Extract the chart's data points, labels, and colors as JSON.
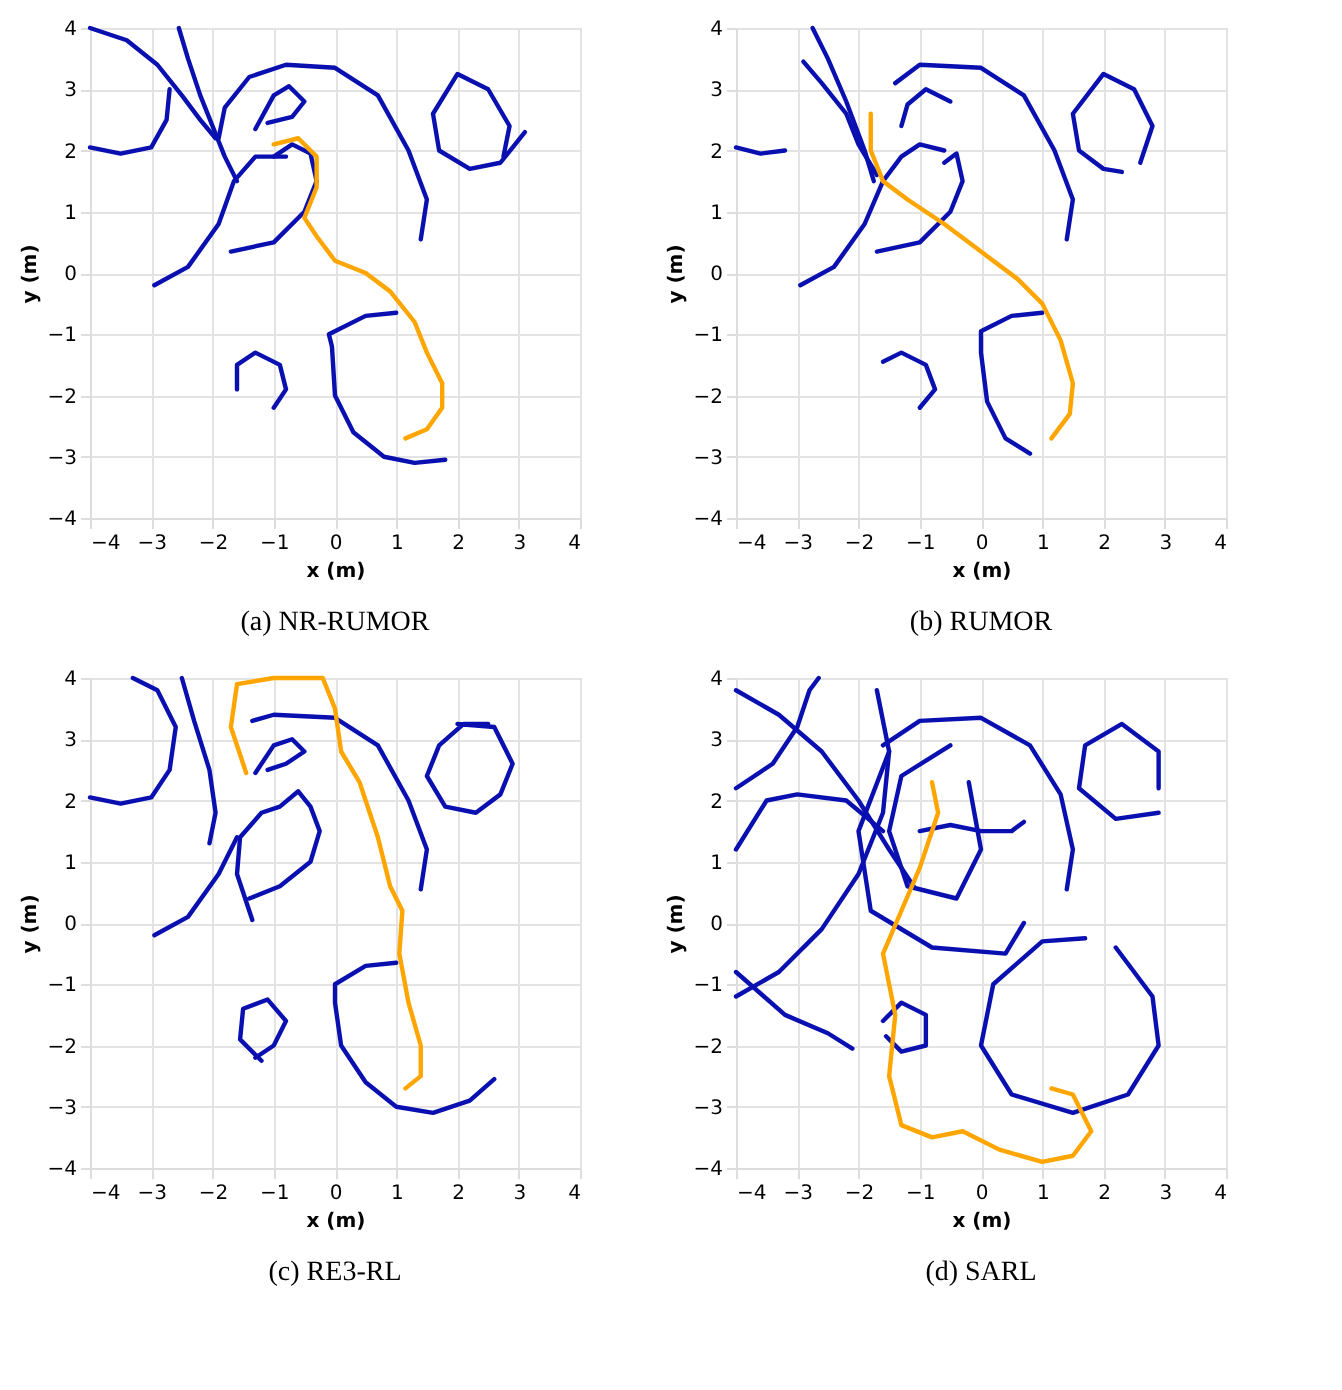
{
  "chart_data": [
    {
      "type": "line",
      "title": "(a) NR-RUMOR",
      "xlabel": "x (m)",
      "ylabel": "y (m)",
      "xlim": [
        -4,
        4
      ],
      "ylim": [
        -4,
        4
      ],
      "xticks": [
        -4,
        -3,
        -2,
        -1,
        0,
        1,
        2,
        3,
        4
      ],
      "yticks": [
        -4,
        -3,
        -2,
        -1,
        0,
        1,
        2,
        3,
        4
      ],
      "grid": true,
      "series": [
        {
          "color": "#0a10b0",
          "x": [
            -4,
            -3.5,
            -3,
            -2.75,
            -2.7
          ],
          "values": [
            2.05,
            1.95,
            2.05,
            2.5,
            3.0
          ]
        },
        {
          "color": "#0a10b0",
          "x": [
            -4,
            -3.4,
            -2.9,
            -2.5,
            -2.2,
            -1.95
          ],
          "values": [
            4,
            3.8,
            3.4,
            2.9,
            2.5,
            2.2
          ]
        },
        {
          "color": "#0a10b0",
          "x": [
            -2.55,
            -2.4,
            -2.2,
            -2.0,
            -1.8,
            -1.6
          ],
          "values": [
            4,
            3.5,
            2.9,
            2.4,
            1.9,
            1.5
          ]
        },
        {
          "color": "#0a10b0",
          "x": [
            -2.95,
            -2.4,
            -1.9,
            -1.65,
            -1.3,
            -0.8
          ],
          "values": [
            -0.2,
            0.1,
            0.8,
            1.5,
            1.9,
            1.9
          ]
        },
        {
          "color": "#0a10b0",
          "x": [
            -1.9,
            -1.8,
            -1.4,
            -0.8,
            0,
            0.7,
            1.2,
            1.5,
            1.4
          ],
          "values": [
            2.2,
            2.7,
            3.2,
            3.4,
            3.35,
            2.9,
            2.0,
            1.2,
            0.55
          ]
        },
        {
          "color": "#0a10b0",
          "x": [
            -1.3,
            -1.0,
            -0.75,
            -0.5,
            -0.7,
            -1.1
          ],
          "values": [
            2.35,
            2.9,
            3.05,
            2.8,
            2.55,
            2.45
          ]
        },
        {
          "color": "#0a10b0",
          "x": [
            -1.7,
            -1.0,
            -0.5,
            -0.3,
            -0.4,
            -0.7,
            -1.0
          ],
          "values": [
            0.35,
            0.5,
            1.0,
            1.5,
            1.95,
            2.1,
            1.9
          ]
        },
        {
          "color": "#0a10b0",
          "x": [
            3.1,
            2.7,
            2.2,
            1.7,
            1.6,
            2.0,
            2.5,
            2.85,
            2.75
          ],
          "values": [
            2.3,
            1.8,
            1.7,
            2.0,
            2.6,
            3.25,
            3.0,
            2.4,
            1.9
          ]
        },
        {
          "color": "#0a10b0",
          "x": [
            -1.6,
            -1.6,
            -1.3,
            -0.9,
            -0.8,
            -1.0
          ],
          "values": [
            -1.9,
            -1.5,
            -1.3,
            -1.5,
            -1.9,
            -2.2
          ]
        },
        {
          "color": "#0a10b0",
          "x": [
            1.0,
            0.5,
            -0.1,
            -0.05,
            0,
            0.3,
            0.8,
            1.3,
            1.8
          ],
          "values": [
            -0.65,
            -0.7,
            -1.0,
            -1.2,
            -2.0,
            -2.6,
            -3.0,
            -3.1,
            -3.05
          ]
        },
        {
          "color": "#ffa500",
          "x": [
            -1.0,
            -0.6,
            -0.3,
            -0.3,
            -0.5,
            -0.3,
            0,
            0.5,
            0.9,
            1.3,
            1.5,
            1.75,
            1.75,
            1.5,
            1.15
          ],
          "values": [
            2.1,
            2.2,
            1.9,
            1.4,
            0.9,
            0.6,
            0.2,
            0,
            -0.3,
            -0.8,
            -1.3,
            -1.8,
            -2.2,
            -2.55,
            -2.7
          ]
        }
      ]
    },
    {
      "type": "line",
      "title": "(b) RUMOR",
      "xlabel": "x (m)",
      "ylabel": "y (m)",
      "xlim": [
        -4,
        4
      ],
      "ylim": [
        -4,
        4
      ],
      "xticks": [
        -4,
        -3,
        -2,
        -1,
        0,
        1,
        2,
        3,
        4
      ],
      "yticks": [
        -4,
        -3,
        -2,
        -1,
        0,
        1,
        2,
        3,
        4
      ],
      "grid": true,
      "series": [
        {
          "color": "#0a10b0",
          "x": [
            -4,
            -3.6,
            -3.2
          ],
          "values": [
            2.05,
            1.95,
            2.0
          ]
        },
        {
          "color": "#0a10b0",
          "x": [
            -2.9,
            -2.6,
            -2.2,
            -2.0,
            -1.7
          ],
          "values": [
            3.45,
            3.1,
            2.6,
            2.1,
            1.6
          ]
        },
        {
          "color": "#0a10b0",
          "x": [
            -2.75,
            -2.5,
            -2.2,
            -1.9,
            -1.75
          ],
          "values": [
            4,
            3.5,
            2.8,
            2.0,
            1.5
          ]
        },
        {
          "color": "#0a10b0",
          "x": [
            -2.95,
            -2.4,
            -1.9,
            -1.6,
            -1.3,
            -1.0,
            -0.6
          ],
          "values": [
            -0.2,
            0.1,
            0.8,
            1.5,
            1.9,
            2.1,
            2.0
          ]
        },
        {
          "color": "#0a10b0",
          "x": [
            -1.4,
            -1.0,
            0,
            0.7,
            1.2,
            1.5,
            1.4
          ],
          "values": [
            3.1,
            3.4,
            3.35,
            2.9,
            2.0,
            1.2,
            0.55
          ]
        },
        {
          "color": "#0a10b0",
          "x": [
            -1.3,
            -1.2,
            -0.9,
            -0.5
          ],
          "values": [
            2.4,
            2.75,
            3.0,
            2.8
          ]
        },
        {
          "color": "#0a10b0",
          "x": [
            -1.7,
            -1.0,
            -0.5,
            -0.3,
            -0.4,
            -0.6
          ],
          "values": [
            0.35,
            0.5,
            1.0,
            1.5,
            1.95,
            1.8
          ]
        },
        {
          "color": "#0a10b0",
          "x": [
            2.3,
            2.0,
            1.6,
            1.5,
            2.0,
            2.5,
            2.8,
            2.6
          ],
          "values": [
            1.65,
            1.7,
            2.0,
            2.6,
            3.25,
            3.0,
            2.4,
            1.8
          ]
        },
        {
          "color": "#0a10b0",
          "x": [
            -1.6,
            -1.3,
            -0.9,
            -0.75,
            -1.0
          ],
          "values": [
            -1.45,
            -1.3,
            -1.5,
            -1.9,
            -2.2
          ]
        },
        {
          "color": "#0a10b0",
          "x": [
            1.0,
            0.5,
            0,
            0,
            0.1,
            0.4,
            0.8
          ],
          "values": [
            -0.65,
            -0.7,
            -0.95,
            -1.3,
            -2.1,
            -2.7,
            -2.95
          ]
        },
        {
          "color": "#ffa500",
          "x": [
            -1.8,
            -1.8,
            -1.6,
            -1.2,
            -0.6,
            0,
            0.6,
            1.0,
            1.3,
            1.5,
            1.45,
            1.15
          ],
          "values": [
            2.6,
            2.0,
            1.5,
            1.2,
            0.8,
            0.35,
            -0.1,
            -0.5,
            -1.1,
            -1.8,
            -2.3,
            -2.7
          ]
        }
      ]
    },
    {
      "type": "line",
      "title": "(c) RE3-RL",
      "xlabel": "x (m)",
      "ylabel": "y (m)",
      "xlim": [
        -4,
        4
      ],
      "ylim": [
        -4,
        4
      ],
      "xticks": [
        -4,
        -3,
        -2,
        -1,
        0,
        1,
        2,
        3,
        4
      ],
      "yticks": [
        -4,
        -3,
        -2,
        -1,
        0,
        1,
        2,
        3,
        4
      ],
      "grid": true,
      "series": [
        {
          "color": "#0a10b0",
          "x": [
            -4,
            -3.5,
            -3,
            -2.7,
            -2.6,
            -2.9,
            -3.3
          ],
          "values": [
            2.05,
            1.95,
            2.05,
            2.5,
            3.2,
            3.8,
            4
          ]
        },
        {
          "color": "#0a10b0",
          "x": [
            -2.5,
            -2.3,
            -2.05,
            -1.95,
            -2.05
          ],
          "values": [
            4,
            3.3,
            2.5,
            1.8,
            1.3
          ]
        },
        {
          "color": "#0a10b0",
          "x": [
            -2.95,
            -2.4,
            -1.9,
            -1.6
          ],
          "values": [
            -0.2,
            0.1,
            0.8,
            1.4
          ]
        },
        {
          "color": "#0a10b0",
          "x": [
            -1.35,
            -1.0,
            0,
            0.7,
            1.2,
            1.5,
            1.4
          ],
          "values": [
            3.3,
            3.4,
            3.35,
            2.9,
            2.0,
            1.2,
            0.55
          ]
        },
        {
          "color": "#0a10b0",
          "x": [
            -1.3,
            -1.0,
            -0.7,
            -0.5,
            -0.8,
            -1.1
          ],
          "values": [
            2.45,
            2.9,
            3.0,
            2.8,
            2.6,
            2.5
          ]
        },
        {
          "color": "#0a10b0",
          "x": [
            -1.4,
            -0.9,
            -0.4,
            -0.25,
            -0.4,
            -0.6,
            -0.9,
            -1.2,
            -1.55,
            -1.6,
            -1.35
          ],
          "values": [
            0.4,
            0.6,
            1.0,
            1.5,
            1.9,
            2.15,
            1.9,
            1.8,
            1.4,
            0.8,
            0.05
          ]
        },
        {
          "color": "#0a10b0",
          "x": [
            2.5,
            2.1,
            1.7,
            1.5,
            1.8,
            2.3,
            2.7,
            2.9,
            2.6,
            2.0
          ],
          "values": [
            3.25,
            3.25,
            2.9,
            2.4,
            1.9,
            1.8,
            2.1,
            2.6,
            3.2,
            3.25
          ]
        },
        {
          "color": "#0a10b0",
          "x": [
            -1.2,
            -1.55,
            -1.5,
            -1.1,
            -0.8,
            -1.0,
            -1.3
          ],
          "values": [
            -2.25,
            -1.9,
            -1.4,
            -1.25,
            -1.6,
            -2.0,
            -2.2
          ]
        },
        {
          "color": "#0a10b0",
          "x": [
            1.0,
            0.5,
            0,
            0,
            0.1,
            0.5,
            1.0,
            1.6,
            2.2,
            2.6
          ],
          "values": [
            -0.65,
            -0.7,
            -1.0,
            -1.3,
            -2.0,
            -2.6,
            -3.0,
            -3.1,
            -2.9,
            -2.55
          ]
        },
        {
          "color": "#ffa500",
          "x": [
            -1.45,
            -1.7,
            -1.6,
            -1.0,
            -0.2,
            0,
            0.1,
            0.4,
            0.7,
            0.9,
            1.1,
            1.05,
            1.2,
            1.4,
            1.4,
            1.15
          ],
          "values": [
            2.45,
            3.2,
            3.9,
            4,
            4,
            3.5,
            2.8,
            2.3,
            1.4,
            0.6,
            0.2,
            -0.5,
            -1.3,
            -2.0,
            -2.5,
            -2.7
          ]
        }
      ]
    },
    {
      "type": "line",
      "title": "(d) SARL",
      "xlabel": "x (m)",
      "ylabel": "y (m)",
      "xlim": [
        -4,
        4
      ],
      "ylim": [
        -4,
        4
      ],
      "xticks": [
        -4,
        -3,
        -2,
        -1,
        0,
        1,
        2,
        3,
        4
      ],
      "yticks": [
        -4,
        -3,
        -2,
        -1,
        0,
        1,
        2,
        3,
        4
      ],
      "grid": true,
      "series": [
        {
          "color": "#0a10b0",
          "x": [
            -4,
            -3.4,
            -3,
            -2.8,
            -2.65
          ],
          "values": [
            2.2,
            2.6,
            3.2,
            3.8,
            4
          ]
        },
        {
          "color": "#0a10b0",
          "x": [
            -4,
            -3.3,
            -2.6,
            -2.0,
            -1.5,
            -1.1
          ],
          "values": [
            3.8,
            3.4,
            2.8,
            2.0,
            1.2,
            0.6
          ]
        },
        {
          "color": "#0a10b0",
          "x": [
            -4,
            -3.3,
            -2.6,
            -2.0,
            -1.6,
            -1.5,
            -1.7
          ],
          "values": [
            -1.2,
            -0.8,
            -0.1,
            0.8,
            1.8,
            2.8,
            3.8
          ]
        },
        {
          "color": "#0a10b0",
          "x": [
            -4,
            -3.5,
            -3.0,
            -2.2,
            -1.6
          ],
          "values": [
            1.2,
            2.0,
            2.1,
            2.0,
            1.5
          ]
        },
        {
          "color": "#0a10b0",
          "x": [
            -4,
            -3.2,
            -2.5,
            -2.1
          ],
          "values": [
            -0.8,
            -1.5,
            -1.8,
            -2.05
          ]
        },
        {
          "color": "#0a10b0",
          "x": [
            -1.6,
            -1.0,
            0,
            0.8,
            1.3,
            1.5,
            1.4
          ],
          "values": [
            2.9,
            3.3,
            3.35,
            2.9,
            2.1,
            1.2,
            0.55
          ]
        },
        {
          "color": "#0a10b0",
          "x": [
            -1.5,
            -2.0,
            -1.8,
            -0.8,
            0.4,
            0.7
          ],
          "values": [
            2.8,
            1.5,
            0.2,
            -0.4,
            -0.5,
            0
          ]
        },
        {
          "color": "#0a10b0",
          "x": [
            -1.0,
            -0.5,
            0,
            0.5,
            0.7
          ],
          "values": [
            1.5,
            1.6,
            1.5,
            1.5,
            1.65
          ]
        },
        {
          "color": "#0a10b0",
          "x": [
            -0.5,
            -1.3,
            -1.5,
            -1.2,
            -0.4,
            0,
            -0.2
          ],
          "values": [
            2.9,
            2.4,
            1.5,
            0.6,
            0.4,
            1.2,
            2.3
          ]
        },
        {
          "color": "#0a10b0",
          "x": [
            2.9,
            2.2,
            1.6,
            1.7,
            2.3,
            2.9,
            2.9
          ],
          "values": [
            1.8,
            1.7,
            2.2,
            2.9,
            3.25,
            2.8,
            2.2
          ]
        },
        {
          "color": "#0a10b0",
          "x": [
            -1.6,
            -1.3,
            -0.9,
            -0.9,
            -1.3,
            -1.55
          ],
          "values": [
            -1.6,
            -1.3,
            -1.5,
            -2.0,
            -2.1,
            -1.85
          ]
        },
        {
          "color": "#0a10b0",
          "x": [
            2.2,
            2.8,
            2.9,
            2.4,
            1.5,
            0.5,
            0,
            0.2,
            1.0,
            1.7
          ],
          "values": [
            -0.4,
            -1.2,
            -2.0,
            -2.8,
            -3.1,
            -2.8,
            -2.0,
            -1.0,
            -0.3,
            -0.25
          ]
        },
        {
          "color": "#ffa500",
          "x": [
            -0.8,
            -0.7,
            -1.0,
            -1.3,
            -1.6,
            -1.4,
            -1.5,
            -1.3,
            -0.8,
            -0.3,
            0.3,
            1.0,
            1.5,
            1.8,
            1.5,
            1.15
          ],
          "values": [
            2.3,
            1.8,
            0.9,
            0.2,
            -0.5,
            -1.5,
            -2.5,
            -3.3,
            -3.5,
            -3.4,
            -3.7,
            -3.9,
            -3.8,
            -3.4,
            -2.8,
            -2.7
          ]
        }
      ]
    }
  ]
}
